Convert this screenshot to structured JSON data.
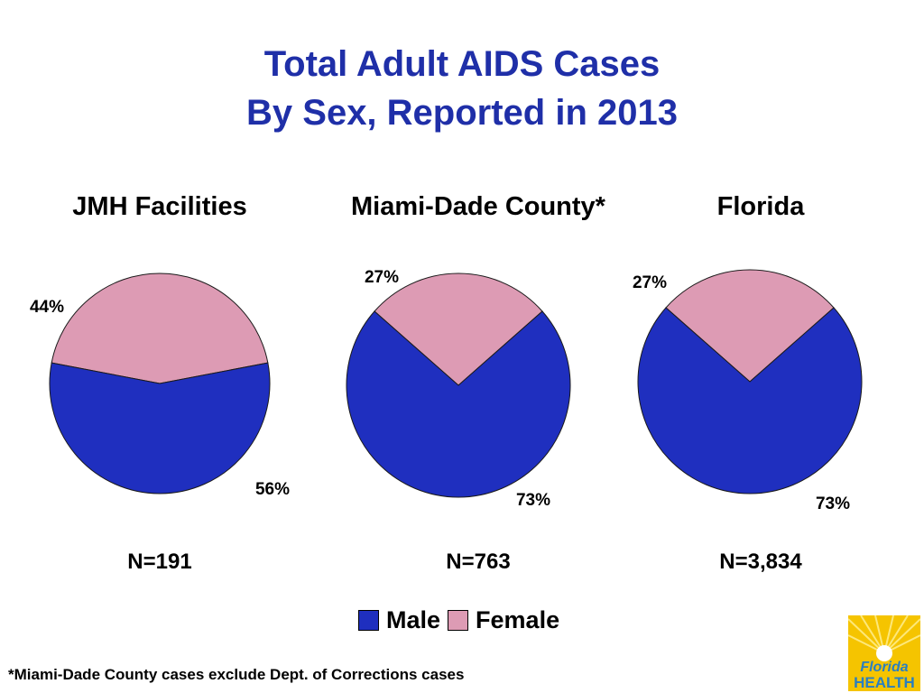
{
  "title": {
    "line1": "Total Adult AIDS Cases",
    "line2": "By Sex, Reported in 2013"
  },
  "colors": {
    "male": "#1f2fbf",
    "female": "#dd9bb4",
    "title": "#1f2fa8"
  },
  "chart_data": [
    {
      "type": "pie",
      "title": "JMH Facilities",
      "n_label": "N=191",
      "slices": [
        {
          "category": "Male",
          "value": 56,
          "label": "56%"
        },
        {
          "category": "Female",
          "value": 44,
          "label": "44%"
        }
      ]
    },
    {
      "type": "pie",
      "title": "Miami-Dade County*",
      "n_label": "N=763",
      "slices": [
        {
          "category": "Male",
          "value": 73,
          "label": "73%"
        },
        {
          "category": "Female",
          "value": 27,
          "label": "27%"
        }
      ]
    },
    {
      "type": "pie",
      "title": "Florida",
      "n_label": "N=3,834",
      "slices": [
        {
          "category": "Male",
          "value": 73,
          "label": "73%"
        },
        {
          "category": "Female",
          "value": 27,
          "label": "27%"
        }
      ]
    }
  ],
  "legend": {
    "male": "Male",
    "female": "Female"
  },
  "footnote": "*Miami-Dade County cases exclude Dept. of Corrections cases",
  "logo": {
    "line1": "Florida",
    "line2": "HEALTH"
  }
}
